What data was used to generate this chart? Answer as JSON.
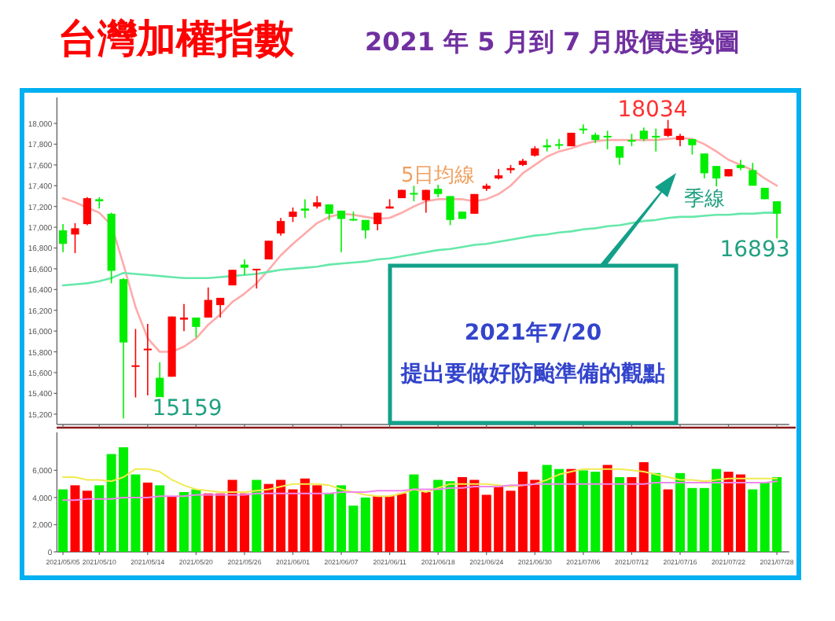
{
  "chart_data": [
    {
      "type": "candlestick",
      "title": "台灣加權指數",
      "subtitle": "2021 年 5 月到 7 月股價走勢圖",
      "tick_labels": "y",
      "categories": [
        "2021/05/05",
        null,
        null,
        "2021/05/10",
        null,
        null,
        null,
        "2021/05/14",
        null,
        null,
        null,
        "2021/05/20",
        null,
        null,
        null,
        "2021/05/26",
        null,
        null,
        null,
        "2021/06/01",
        null,
        null,
        null,
        "2021/06/07",
        null,
        null,
        null,
        "2021/06/11",
        null,
        null,
        null,
        "2021/06/18",
        null,
        null,
        null,
        "2021/06/24",
        null,
        null,
        null,
        "2021/06/30",
        null,
        null,
        null,
        "2021/07/06",
        null,
        null,
        null,
        "2021/07/12",
        null,
        null,
        null,
        "2021/07/16",
        null,
        null,
        null,
        "2021/07/22",
        null,
        null,
        null,
        "2021/07/28"
      ],
      "ohlc": [
        [
          16970,
          17030,
          16760,
          16840
        ],
        [
          16930,
          17040,
          16750,
          16990
        ],
        [
          17030,
          17290,
          17020,
          17280
        ],
        [
          17270,
          17290,
          17180,
          17250
        ],
        [
          17130,
          17140,
          16460,
          16580
        ],
        [
          16500,
          16510,
          15159,
          15890
        ],
        [
          15660,
          16020,
          15360,
          15670
        ],
        [
          15820,
          16070,
          15380,
          15830
        ],
        [
          15550,
          15700,
          15320,
          15360
        ],
        [
          15560,
          16140,
          15560,
          16140
        ],
        [
          16110,
          16260,
          16000,
          16130
        ],
        [
          16130,
          16130,
          15940,
          16040
        ],
        [
          16130,
          16420,
          16130,
          16300
        ],
        [
          16250,
          16320,
          16130,
          16320
        ],
        [
          16440,
          16590,
          16440,
          16590
        ],
        [
          16640,
          16690,
          16540,
          16610
        ],
        [
          16590,
          16600,
          16410,
          16600
        ],
        [
          16690,
          16870,
          16690,
          16870
        ],
        [
          16940,
          17090,
          16920,
          17060
        ],
        [
          17100,
          17190,
          17050,
          17150
        ],
        [
          17180,
          17270,
          17090,
          17160
        ],
        [
          17200,
          17300,
          17180,
          17240
        ],
        [
          17220,
          17220,
          17070,
          17130
        ],
        [
          17160,
          17160,
          16760,
          17080
        ],
        [
          17080,
          17150,
          17060,
          17070
        ],
        [
          17070,
          17070,
          16890,
          16970
        ],
        [
          17030,
          17140,
          16970,
          17140
        ],
        [
          17180,
          17270,
          17180,
          17200
        ],
        [
          17280,
          17360,
          17280,
          17360
        ],
        [
          17330,
          17400,
          17250,
          17320
        ],
        [
          17260,
          17360,
          17140,
          17360
        ],
        [
          17370,
          17410,
          17290,
          17320
        ],
        [
          17300,
          17300,
          17020,
          17070
        ],
        [
          17150,
          17150,
          17080,
          17080
        ],
        [
          17130,
          17320,
          17130,
          17320
        ],
        [
          17370,
          17420,
          17350,
          17400
        ],
        [
          17470,
          17560,
          17460,
          17500
        ],
        [
          17550,
          17600,
          17520,
          17570
        ],
        [
          17600,
          17660,
          17590,
          17640
        ],
        [
          17690,
          17780,
          17680,
          17760
        ],
        [
          17790,
          17850,
          17730,
          17770
        ],
        [
          17800,
          17850,
          17750,
          17790
        ],
        [
          17780,
          17910,
          17780,
          17910
        ],
        [
          17950,
          17990,
          17900,
          17940
        ],
        [
          17890,
          17910,
          17810,
          17840
        ],
        [
          17880,
          17930,
          17750,
          17870
        ],
        [
          17780,
          17780,
          17600,
          17670
        ],
        [
          17840,
          17900,
          17780,
          17830
        ],
        [
          17930,
          17960,
          17830,
          17850
        ],
        [
          17880,
          17950,
          17730,
          17870
        ],
        [
          17880,
          18034,
          17870,
          17950
        ],
        [
          17840,
          17900,
          17780,
          17880
        ],
        [
          17850,
          17850,
          17700,
          17790
        ],
        [
          17710,
          17710,
          17470,
          17520
        ],
        [
          17590,
          17590,
          17350,
          17470
        ],
        [
          17490,
          17560,
          17490,
          17560
        ],
        [
          17600,
          17650,
          17550,
          17570
        ],
        [
          17550,
          17620,
          17400,
          17400
        ],
        [
          17380,
          17380,
          17270,
          17270
        ],
        [
          17250,
          17250,
          16893,
          17130
        ]
      ],
      "colors": [
        "#00ee00",
        "#ff0000",
        "#ff0000",
        "#00ee00",
        "#00ee00",
        "#00ee00",
        "#ff0000",
        "#ff0000",
        "#00ee00",
        "#ff0000",
        "#ff0000",
        "#00ee00",
        "#ff0000",
        "#ff0000",
        "#ff0000",
        "#00ee00",
        "#ff0000",
        "#ff0000",
        "#ff0000",
        "#ff0000",
        "#00ee00",
        "#ff0000",
        "#00ee00",
        "#00ee00",
        "#00ee00",
        "#00ee00",
        "#ff0000",
        "#ff0000",
        "#ff0000",
        "#00ee00",
        "#ff0000",
        "#00ee00",
        "#00ee00",
        "#00ee00",
        "#ff0000",
        "#ff0000",
        "#ff0000",
        "#ff0000",
        "#ff0000",
        "#ff0000",
        "#00ee00",
        "#00ee00",
        "#ff0000",
        "#00ee00",
        "#00ee00",
        "#00ee00",
        "#00ee00",
        "#00ee00",
        "#00ee00",
        "#00ee00",
        "#ff0000",
        "#ff0000",
        "#00ee00",
        "#00ee00",
        "#00ee00",
        "#ff0000",
        "#00ee00",
        "#00ee00",
        "#00ee00",
        "#00ee00"
      ],
      "series": [
        {
          "type": "line",
          "name": "5日均線",
          "color": "#ffaaaa",
          "values": [
            17280,
            17240,
            17190,
            17140,
            17020,
            16640,
            16230,
            15930,
            15800,
            15800,
            15850,
            15930,
            16060,
            16160,
            16280,
            16360,
            16460,
            16590,
            16730,
            16840,
            16940,
            17040,
            17100,
            17130,
            17120,
            17100,
            17080,
            17090,
            17140,
            17200,
            17250,
            17270,
            17270,
            17270,
            17250,
            17270,
            17320,
            17400,
            17520,
            17600,
            17680,
            17730,
            17760,
            17800,
            17830,
            17840,
            17840,
            17840,
            17840,
            17840,
            17850,
            17860,
            17850,
            17800,
            17730,
            17650,
            17600,
            17550,
            17470,
            17400
          ]
        },
        {
          "type": "line",
          "name": "季線",
          "color": "#66e8aa",
          "values": [
            16440,
            16450,
            16460,
            16480,
            16510,
            16560,
            16550,
            16540,
            16530,
            16520,
            16510,
            16510,
            16510,
            16520,
            16530,
            16540,
            16550,
            16570,
            16590,
            16600,
            16610,
            16620,
            16640,
            16650,
            16660,
            16670,
            16690,
            16700,
            16720,
            16740,
            16760,
            16780,
            16790,
            16810,
            16830,
            16840,
            16860,
            16880,
            16900,
            16920,
            16930,
            16950,
            16960,
            16980,
            16990,
            17010,
            17020,
            17040,
            17060,
            17070,
            17090,
            17100,
            17100,
            17110,
            17120,
            17120,
            17130,
            17130,
            17140,
            17140
          ]
        }
      ],
      "ylim": [
        15100,
        18250
      ],
      "yticks": [
        {
          "value": 15200,
          "label": "15,200"
        },
        {
          "value": 15400,
          "label": "15,400"
        },
        {
          "value": 15600,
          "label": "15,600"
        },
        {
          "value": 15800,
          "label": "15,800"
        },
        {
          "value": 16000,
          "label": "16,000"
        },
        {
          "value": 16200,
          "label": "16,200"
        },
        {
          "value": 16400,
          "label": "16,400"
        },
        {
          "value": 16600,
          "label": "16,600"
        },
        {
          "value": 16800,
          "label": "16,800"
        },
        {
          "value": 17000,
          "label": "17,000"
        },
        {
          "value": 17200,
          "label": "17,200"
        },
        {
          "value": 17400,
          "label": "17,400"
        },
        {
          "value": 17600,
          "label": "17,600"
        },
        {
          "value": 17800,
          "label": "17,800"
        },
        {
          "value": 18000,
          "label": "18,000"
        }
      ],
      "annotations": [
        "18034",
        "16893",
        "15159",
        "2021年7/20",
        "提出要做好防颱準備的觀點"
      ]
    },
    {
      "type": "bar",
      "categories": [
        "2021/05/05",
        null,
        null,
        "2021/05/10",
        null,
        null,
        null,
        "2021/05/14",
        null,
        null,
        null,
        "2021/05/20",
        null,
        null,
        null,
        "2021/05/26",
        null,
        null,
        null,
        "2021/06/01",
        null,
        null,
        null,
        "2021/06/07",
        null,
        null,
        null,
        "2021/06/11",
        null,
        null,
        null,
        "2021/06/18",
        null,
        null,
        null,
        "2021/06/24",
        null,
        null,
        null,
        "2021/06/30",
        null,
        null,
        null,
        "2021/07/06",
        null,
        null,
        null,
        "2021/07/12",
        null,
        null,
        null,
        "2021/07/16",
        null,
        null,
        null,
        "2021/07/22",
        null,
        null,
        null,
        "2021/07/28"
      ],
      "series": [
        {
          "type": "bar",
          "values": [
            4600,
            4900,
            4500,
            4900,
            7200,
            7700,
            5700,
            5100,
            4900,
            4100,
            4400,
            4600,
            4300,
            4300,
            5300,
            4300,
            5300,
            5000,
            5300,
            4600,
            5400,
            4900,
            4300,
            4900,
            3400,
            4000,
            4100,
            4100,
            4300,
            5700,
            4400,
            5300,
            5200,
            5500,
            5300,
            4200,
            4800,
            4500,
            5900,
            5300,
            6400,
            6100,
            6100,
            6000,
            5900,
            6400,
            5500,
            5500,
            6600,
            5800,
            4600,
            5800,
            4700,
            4700,
            6100,
            5900,
            5700,
            4600,
            5100,
            5500
          ],
          "colors": [
            "#00ee00",
            "#ff0000",
            "#ff0000",
            "#00ee00",
            "#00ee00",
            "#00ee00",
            "#00ee00",
            "#ff0000",
            "#00ee00",
            "#ff0000",
            "#00ee00",
            "#00ee00",
            "#ff0000",
            "#ff0000",
            "#ff0000",
            "#ff0000",
            "#00ee00",
            "#ff0000",
            "#ff0000",
            "#ff0000",
            "#ff0000",
            "#ff0000",
            "#00ee00",
            "#00ee00",
            "#00ee00",
            "#00ee00",
            "#ff0000",
            "#ff0000",
            "#ff0000",
            "#00ee00",
            "#ff0000",
            "#00ee00",
            "#00ee00",
            "#ff0000",
            "#ff0000",
            "#ff0000",
            "#ff0000",
            "#ff0000",
            "#ff0000",
            "#ff0000",
            "#00ee00",
            "#00ee00",
            "#ff0000",
            "#00ee00",
            "#00ee00",
            "#ff0000",
            "#00ee00",
            "#ff0000",
            "#ff0000",
            "#00ee00",
            "#ff0000",
            "#00ee00",
            "#00ee00",
            "#00ee00",
            "#00ee00",
            "#ff0000",
            "#ff0000",
            "#00ee00",
            "#00ee00",
            "#00ee00"
          ]
        },
        {
          "type": "line",
          "color": "#f0ea50",
          "values": [
            5500,
            5500,
            5300,
            5300,
            5200,
            5500,
            6100,
            6100,
            5900,
            5300,
            4900,
            4600,
            4500,
            4400,
            4400,
            4400,
            4500,
            4600,
            4800,
            5000,
            5000,
            5000,
            4900,
            4600,
            4400,
            4200,
            4100,
            4100,
            4300,
            4600,
            4400,
            4700,
            5000,
            5000,
            5000,
            5000,
            4900,
            4800,
            4900,
            5000,
            5300,
            5700,
            5900,
            6100,
            6100,
            6100,
            6100,
            6000,
            5900,
            5700,
            5500,
            5300,
            5300,
            5200,
            5300,
            5400,
            5400,
            5400,
            5400,
            5400
          ]
        },
        {
          "type": "line",
          "color": "#ee88ee",
          "values": [
            3800,
            3800,
            3900,
            3900,
            3900,
            4000,
            4000,
            4000,
            4100,
            4100,
            4100,
            4200,
            4200,
            4200,
            4200,
            4200,
            4300,
            4300,
            4300,
            4300,
            4300,
            4300,
            4300,
            4400,
            4400,
            4400,
            4500,
            4500,
            4500,
            4600,
            4600,
            4600,
            4700,
            4700,
            4800,
            4800,
            4800,
            4900,
            4900,
            5000,
            5000,
            5000,
            5000,
            5000,
            5000,
            5000,
            5000,
            5000,
            5000,
            5100,
            5100,
            5100,
            5100,
            5100,
            5100,
            5100,
            5100,
            5100,
            5100,
            5200
          ]
        }
      ],
      "ylim": [
        0,
        8800
      ],
      "yticks": [
        0,
        {
          "value": 2000,
          "label": "2,000"
        },
        {
          "value": 4000,
          "label": "4,000"
        },
        {
          "value": 6000,
          "label": "6,000"
        }
      ]
    }
  ]
}
